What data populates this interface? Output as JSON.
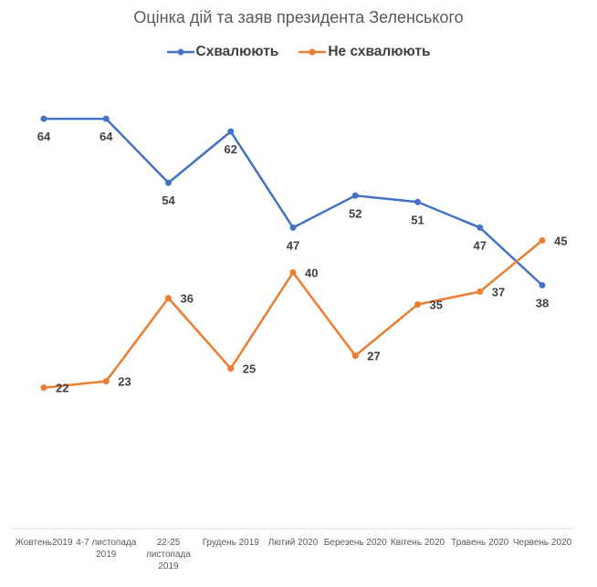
{
  "chart_data": {
    "type": "line",
    "title": "Оцінка дій та заяв президента Зеленського",
    "categories": [
      "Жовтень2019",
      "4-7 листопада 2019",
      "22-25 листопада 2019",
      "Грудень 2019",
      "Лютий 2020",
      "Березень 2020",
      "Квітень 2020",
      "Травень 2020",
      "Червень 2020"
    ],
    "series": [
      {
        "name": "Схвалюють",
        "color": "#4472C4",
        "values": [
          64,
          64,
          54,
          62,
          47,
          52,
          51,
          47,
          38
        ]
      },
      {
        "name": "Не схвалюють",
        "color": "#ED7D31",
        "values": [
          22,
          23,
          36,
          25,
          40,
          27,
          35,
          37,
          45
        ]
      }
    ],
    "ylim": [
      0,
      70
    ],
    "grid": false,
    "legend": "top",
    "data_labels": true
  }
}
